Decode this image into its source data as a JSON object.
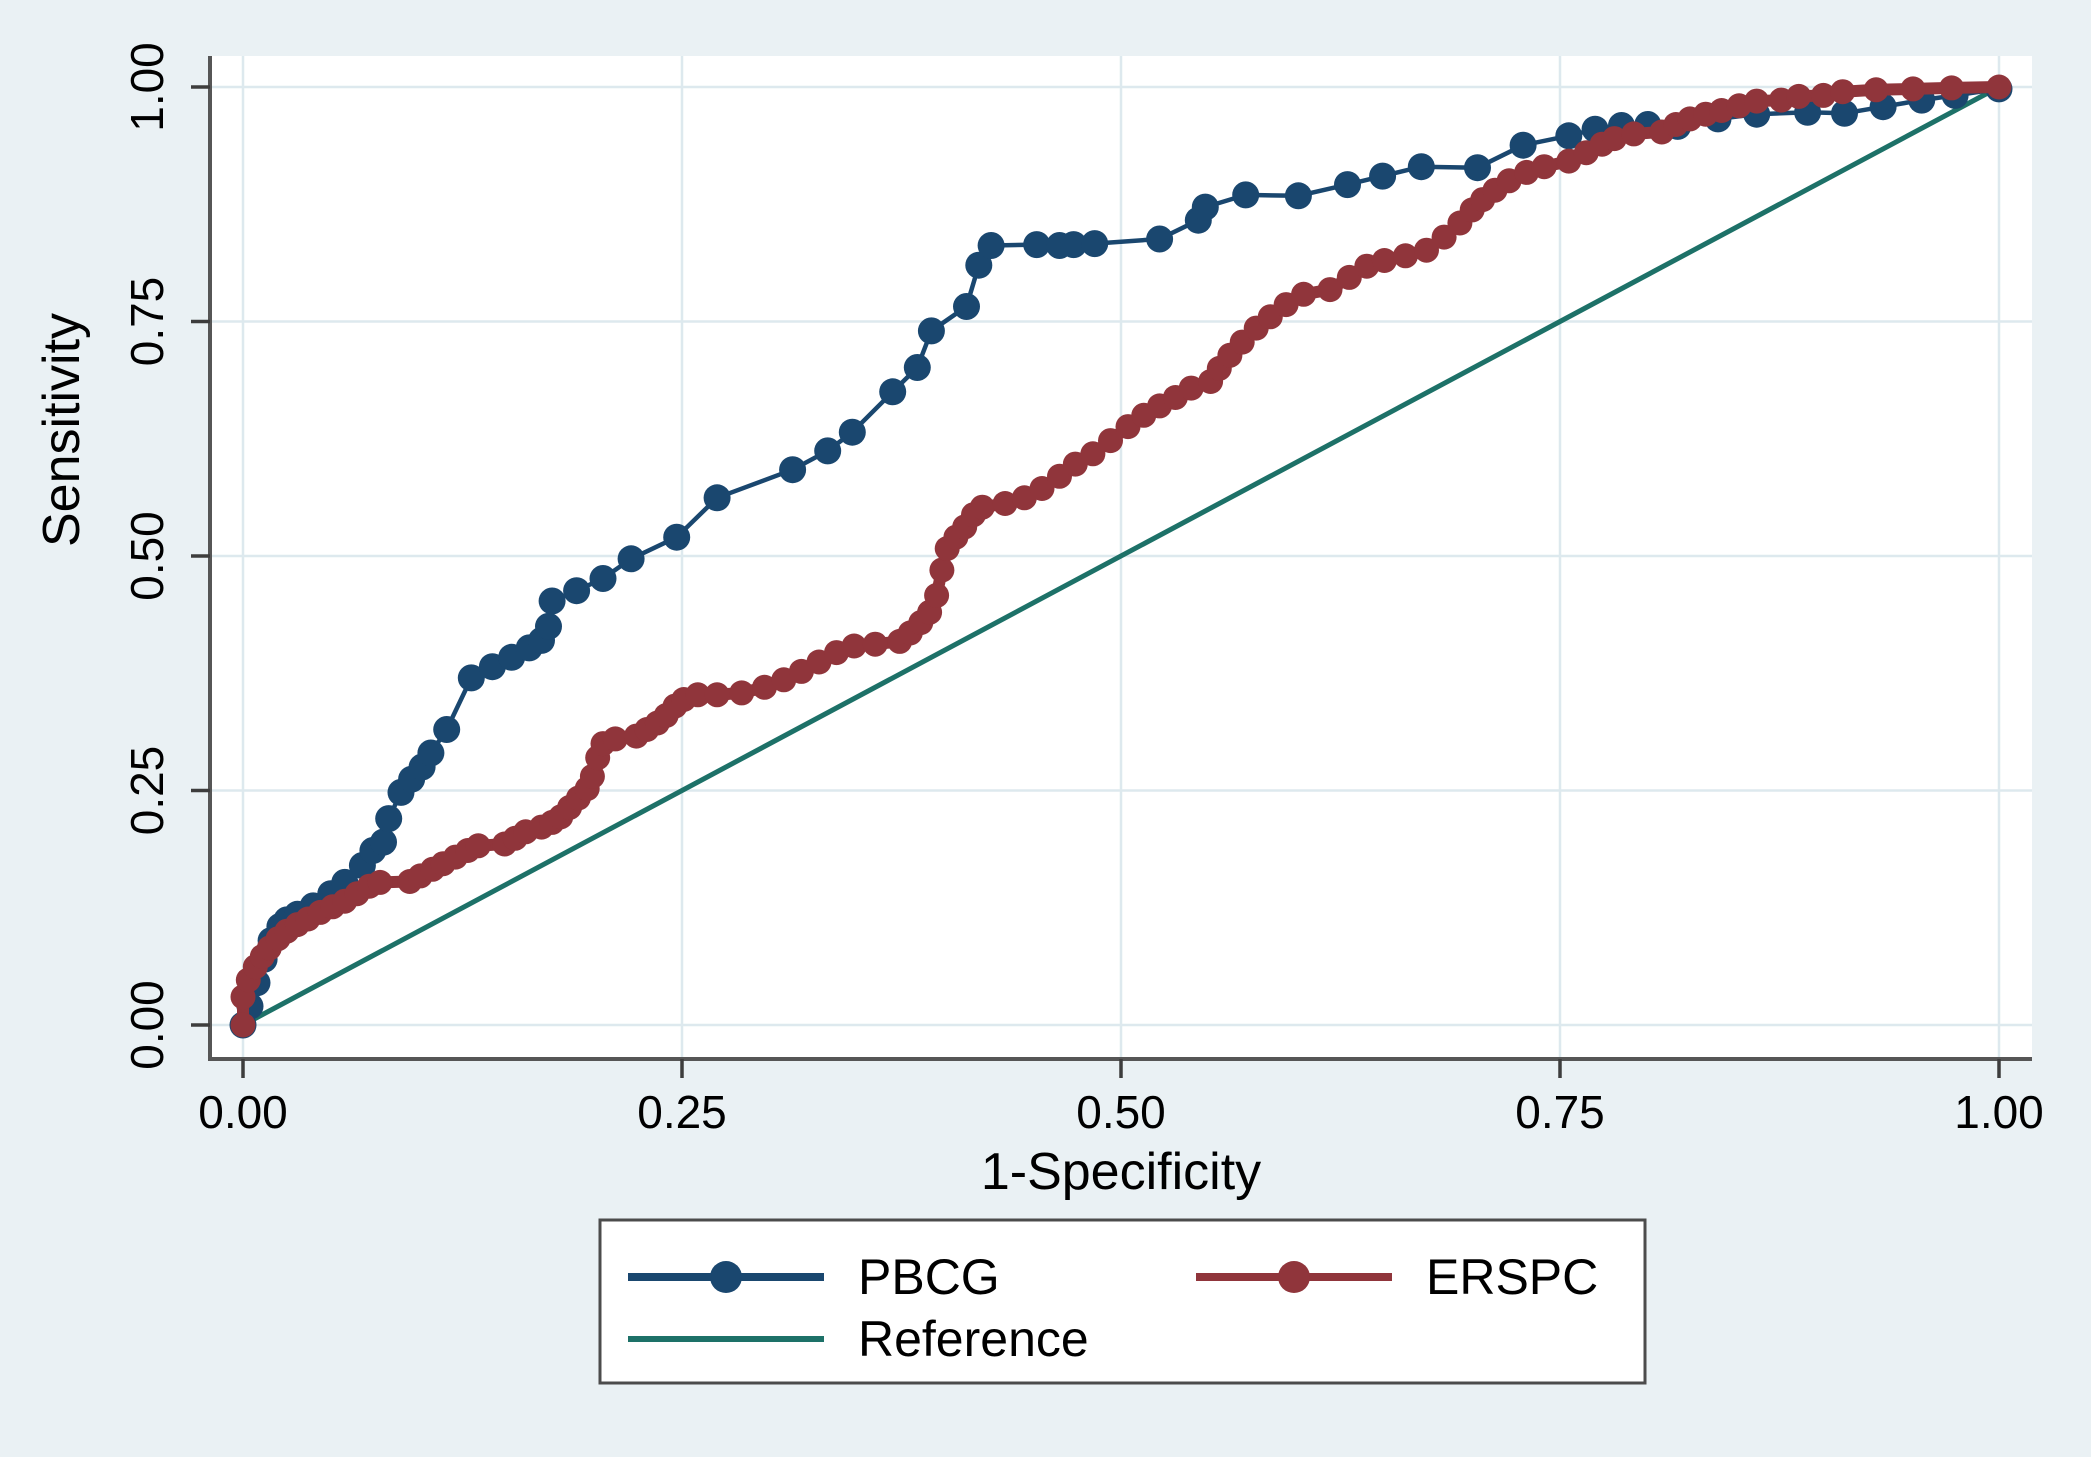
{
  "figure": {
    "background": "#eaf1f4",
    "plot_background": "#ffffff",
    "grid_color": "#dde9ee",
    "axis_color": "#565656",
    "tick_color": "#3d3d3d",
    "legend_border_color": "#4c4c4c",
    "text_color": "#000000"
  },
  "chart_data": {
    "type": "line",
    "subtype": "roc-curve",
    "title": "",
    "xlabel": "1-Specificity",
    "ylabel": "Sensitivity",
    "xlim": [
      0,
      1
    ],
    "ylim": [
      0,
      1
    ],
    "grid": true,
    "legend_position": "bottom",
    "xticks": {
      "values": [
        0,
        0.25,
        0.5,
        0.75,
        1
      ],
      "labels": [
        "0.00",
        "0.25",
        "0.50",
        "0.75",
        "1.00"
      ]
    },
    "yticks": {
      "values": [
        0,
        0.25,
        0.5,
        0.75,
        1
      ],
      "labels": [
        "0.00",
        "0.25",
        "0.50",
        "0.75",
        "1.00"
      ]
    },
    "series": [
      {
        "name": "PBCG",
        "color": "#1a476f",
        "marker": "circle",
        "marker_size": 13.5,
        "line_width": 4.5,
        "points": [
          [
            0,
            0
          ],
          [
            0.004,
            0.02
          ],
          [
            0.008,
            0.045
          ],
          [
            0.012,
            0.07
          ],
          [
            0.016,
            0.09
          ],
          [
            0.021,
            0.105
          ],
          [
            0.025,
            0.112
          ],
          [
            0.031,
            0.118
          ],
          [
            0.04,
            0.127
          ],
          [
            0.05,
            0.14
          ],
          [
            0.058,
            0.152
          ],
          [
            0.068,
            0.17
          ],
          [
            0.074,
            0.186
          ],
          [
            0.08,
            0.195
          ],
          [
            0.083,
            0.22
          ],
          [
            0.09,
            0.248
          ],
          [
            0.096,
            0.262
          ],
          [
            0.102,
            0.275
          ],
          [
            0.107,
            0.29
          ],
          [
            0.116,
            0.315
          ],
          [
            0.13,
            0.37
          ],
          [
            0.142,
            0.382
          ],
          [
            0.153,
            0.392
          ],
          [
            0.163,
            0.402
          ],
          [
            0.17,
            0.41
          ],
          [
            0.174,
            0.425
          ],
          [
            0.176,
            0.452
          ],
          [
            0.19,
            0.463
          ],
          [
            0.205,
            0.476
          ],
          [
            0.221,
            0.497
          ],
          [
            0.247,
            0.52
          ],
          [
            0.27,
            0.562
          ],
          [
            0.313,
            0.592
          ],
          [
            0.333,
            0.612
          ],
          [
            0.347,
            0.632
          ],
          [
            0.37,
            0.675
          ],
          [
            0.384,
            0.701
          ],
          [
            0.392,
            0.74
          ],
          [
            0.412,
            0.766
          ],
          [
            0.419,
            0.81
          ],
          [
            0.426,
            0.831
          ],
          [
            0.452,
            0.832
          ],
          [
            0.465,
            0.831
          ],
          [
            0.473,
            0.832
          ],
          [
            0.485,
            0.833
          ],
          [
            0.522,
            0.838
          ],
          [
            0.544,
            0.858
          ],
          [
            0.548,
            0.872
          ],
          [
            0.571,
            0.885
          ],
          [
            0.601,
            0.884
          ],
          [
            0.629,
            0.896
          ],
          [
            0.649,
            0.905
          ],
          [
            0.671,
            0.915
          ],
          [
            0.703,
            0.914
          ],
          [
            0.729,
            0.938
          ],
          [
            0.755,
            0.948
          ],
          [
            0.77,
            0.955
          ],
          [
            0.785,
            0.959
          ],
          [
            0.8,
            0.96
          ],
          [
            0.817,
            0.958
          ],
          [
            0.84,
            0.966
          ],
          [
            0.862,
            0.971
          ],
          [
            0.891,
            0.973
          ],
          [
            0.912,
            0.972
          ],
          [
            0.934,
            0.979
          ],
          [
            0.956,
            0.986
          ],
          [
            0.975,
            0.991
          ],
          [
            1,
            0.998
          ]
        ]
      },
      {
        "name": "ERSPC",
        "color": "#90353b",
        "marker": "circle",
        "marker_size": 12.5,
        "line_width": 12,
        "points": [
          [
            0,
            0
          ],
          [
            0,
            0.03
          ],
          [
            0.003,
            0.048
          ],
          [
            0.007,
            0.062
          ],
          [
            0.011,
            0.073
          ],
          [
            0.015,
            0.082
          ],
          [
            0.02,
            0.092
          ],
          [
            0.025,
            0.1
          ],
          [
            0.031,
            0.107
          ],
          [
            0.037,
            0.113
          ],
          [
            0.044,
            0.12
          ],
          [
            0.051,
            0.126
          ],
          [
            0.058,
            0.132
          ],
          [
            0.065,
            0.14
          ],
          [
            0.072,
            0.148
          ],
          [
            0.078,
            0.152
          ],
          [
            0.095,
            0.153
          ],
          [
            0.101,
            0.159
          ],
          [
            0.108,
            0.166
          ],
          [
            0.114,
            0.172
          ],
          [
            0.121,
            0.179
          ],
          [
            0.128,
            0.186
          ],
          [
            0.134,
            0.191
          ],
          [
            0.149,
            0.193
          ],
          [
            0.155,
            0.199
          ],
          [
            0.161,
            0.206
          ],
          [
            0.17,
            0.211
          ],
          [
            0.176,
            0.216
          ],
          [
            0.181,
            0.222
          ],
          [
            0.186,
            0.232
          ],
          [
            0.191,
            0.242
          ],
          [
            0.196,
            0.252
          ],
          [
            0.199,
            0.265
          ],
          [
            0.202,
            0.285
          ],
          [
            0.205,
            0.3
          ],
          [
            0.212,
            0.305
          ],
          [
            0.224,
            0.308
          ],
          [
            0.23,
            0.315
          ],
          [
            0.236,
            0.322
          ],
          [
            0.241,
            0.33
          ],
          [
            0.246,
            0.34
          ],
          [
            0.251,
            0.347
          ],
          [
            0.259,
            0.352
          ],
          [
            0.27,
            0.352
          ],
          [
            0.284,
            0.354
          ],
          [
            0.297,
            0.36
          ],
          [
            0.308,
            0.368
          ],
          [
            0.318,
            0.377
          ],
          [
            0.328,
            0.387
          ],
          [
            0.338,
            0.397
          ],
          [
            0.348,
            0.404
          ],
          [
            0.36,
            0.406
          ],
          [
            0.374,
            0.409
          ],
          [
            0.38,
            0.418
          ],
          [
            0.386,
            0.429
          ],
          [
            0.391,
            0.44
          ],
          [
            0.395,
            0.458
          ],
          [
            0.398,
            0.485
          ],
          [
            0.401,
            0.508
          ],
          [
            0.406,
            0.52
          ],
          [
            0.411,
            0.531
          ],
          [
            0.416,
            0.544
          ],
          [
            0.421,
            0.552
          ],
          [
            0.434,
            0.556
          ],
          [
            0.445,
            0.562
          ],
          [
            0.455,
            0.572
          ],
          [
            0.465,
            0.585
          ],
          [
            0.474,
            0.598
          ],
          [
            0.484,
            0.609
          ],
          [
            0.494,
            0.623
          ],
          [
            0.504,
            0.638
          ],
          [
            0.513,
            0.65
          ],
          [
            0.522,
            0.66
          ],
          [
            0.531,
            0.669
          ],
          [
            0.54,
            0.679
          ],
          [
            0.551,
            0.686
          ],
          [
            0.556,
            0.7
          ],
          [
            0.562,
            0.714
          ],
          [
            0.569,
            0.728
          ],
          [
            0.577,
            0.743
          ],
          [
            0.585,
            0.755
          ],
          [
            0.594,
            0.768
          ],
          [
            0.604,
            0.779
          ],
          [
            0.619,
            0.784
          ],
          [
            0.63,
            0.797
          ],
          [
            0.64,
            0.809
          ],
          [
            0.65,
            0.815
          ],
          [
            0.662,
            0.82
          ],
          [
            0.674,
            0.826
          ],
          [
            0.684,
            0.84
          ],
          [
            0.693,
            0.855
          ],
          [
            0.7,
            0.869
          ],
          [
            0.706,
            0.88
          ],
          [
            0.713,
            0.89
          ],
          [
            0.721,
            0.9
          ],
          [
            0.731,
            0.909
          ],
          [
            0.741,
            0.915
          ],
          [
            0.755,
            0.921
          ],
          [
            0.765,
            0.93
          ],
          [
            0.774,
            0.939
          ],
          [
            0.781,
            0.945
          ],
          [
            0.792,
            0.95
          ],
          [
            0.808,
            0.952
          ],
          [
            0.816,
            0.96
          ],
          [
            0.824,
            0.966
          ],
          [
            0.833,
            0.971
          ],
          [
            0.842,
            0.975
          ],
          [
            0.852,
            0.98
          ],
          [
            0.862,
            0.985
          ],
          [
            0.876,
            0.986
          ],
          [
            0.886,
            0.99
          ],
          [
            0.9,
            0.991
          ],
          [
            0.911,
            0.995
          ],
          [
            0.93,
            0.997
          ],
          [
            0.951,
            0.998
          ],
          [
            0.973,
            0.999
          ],
          [
            1,
            1
          ]
        ]
      },
      {
        "name": "Reference",
        "color": "#1d7168",
        "marker": "none",
        "marker_size": 0,
        "line_width": 5,
        "points": [
          [
            0,
            0
          ],
          [
            1,
            1
          ]
        ]
      }
    ]
  }
}
